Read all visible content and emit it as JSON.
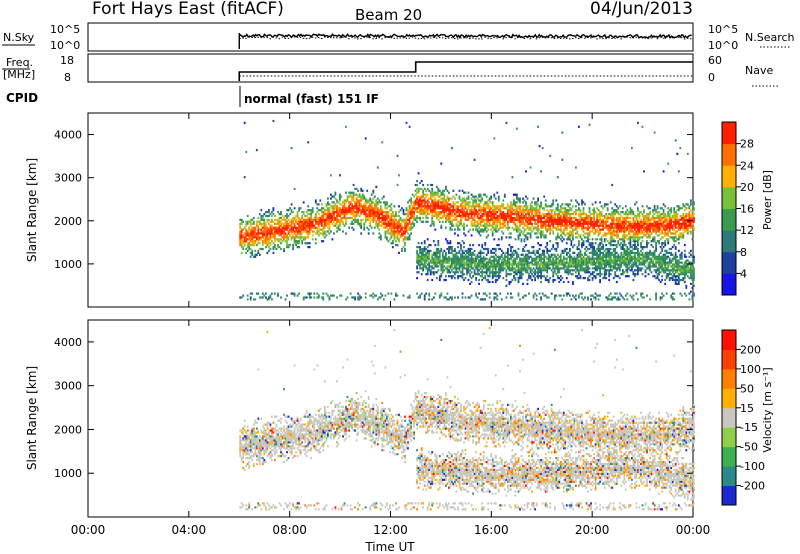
{
  "header": {
    "station": "Fort Hays East (fitACF)",
    "beam": "Beam 20",
    "date": "04/Jun/2013"
  },
  "top_panels": {
    "nsky_label": "N.Sky",
    "nsky_ticks": [
      "10^5",
      "10^0"
    ],
    "nsearch_label": "N.Search",
    "nsearch_ticks": [
      "10^5",
      "10^0"
    ],
    "freq_label": "Freq.",
    "freq_unit": "[MHz]",
    "freq_ticks": [
      "18",
      "8"
    ],
    "nave_label": "Nave",
    "nave_ticks": [
      "60",
      "0"
    ],
    "cpid_label": "CPID",
    "cpid_text": "normal (fast) 151 IF"
  },
  "chart_data": [
    {
      "type": "heatmap",
      "parameter": "power",
      "ylabel": "Slant Range [km]",
      "ylim": [
        0,
        4500
      ],
      "y_ticks": [
        "1000",
        "2000",
        "3000",
        "4000"
      ],
      "xlim": [
        0,
        24
      ],
      "colorbar_label": "Power [dB]",
      "colorbar_ticks": [
        "4",
        "8",
        "12",
        "16",
        "20",
        "24",
        "28"
      ],
      "colorbar_colors": [
        "#1515e6",
        "#20409f",
        "#2c7a7a",
        "#3c9a50",
        "#7ac03a",
        "#ffb000",
        "#ff7000",
        "#ff2000"
      ],
      "data_start_ut": 6.0,
      "bands": [
        {
          "t": [
            6.0,
            7.5,
            9.0,
            10.5,
            11.5,
            12.5,
            13.0,
            15.0,
            17.0,
            19.0,
            21.0,
            23.0,
            24.0
          ],
          "r": [
            1600,
            1750,
            1900,
            2300,
            2100,
            1700,
            2400,
            2150,
            2050,
            1950,
            1850,
            1850,
            2000
          ],
          "w": 220,
          "level": 0.85
        },
        {
          "t": [
            13.0,
            16.0,
            19.0,
            22.0,
            24.0
          ],
          "r": [
            1100,
            950,
            1000,
            1100,
            800
          ],
          "w": 200,
          "level": 0.35
        }
      ]
    },
    {
      "type": "heatmap",
      "parameter": "velocity",
      "ylabel": "Slant Range [km]",
      "ylim": [
        0,
        4500
      ],
      "y_ticks": [
        "1000",
        "2000",
        "3000",
        "4000"
      ],
      "xlim": [
        0,
        24
      ],
      "x_ticks": [
        "00:00",
        "04:00",
        "08:00",
        "12:00",
        "16:00",
        "20:00",
        "00:00"
      ],
      "xlabel": "Time UT",
      "colorbar_label": "Velocity [m s⁻¹]",
      "colorbar_ticks": [
        "200",
        "100",
        "50",
        "15",
        "-15",
        "-50",
        "-100",
        "-200"
      ],
      "colorbar_colors": [
        "#1a2ad0",
        "#2a8a8a",
        "#3cb050",
        "#8ed04a",
        "#c8c8c0",
        "#ffb000",
        "#ff8000",
        "#ff4000",
        "#ff1000"
      ],
      "data_start_ut": 6.0
    }
  ]
}
